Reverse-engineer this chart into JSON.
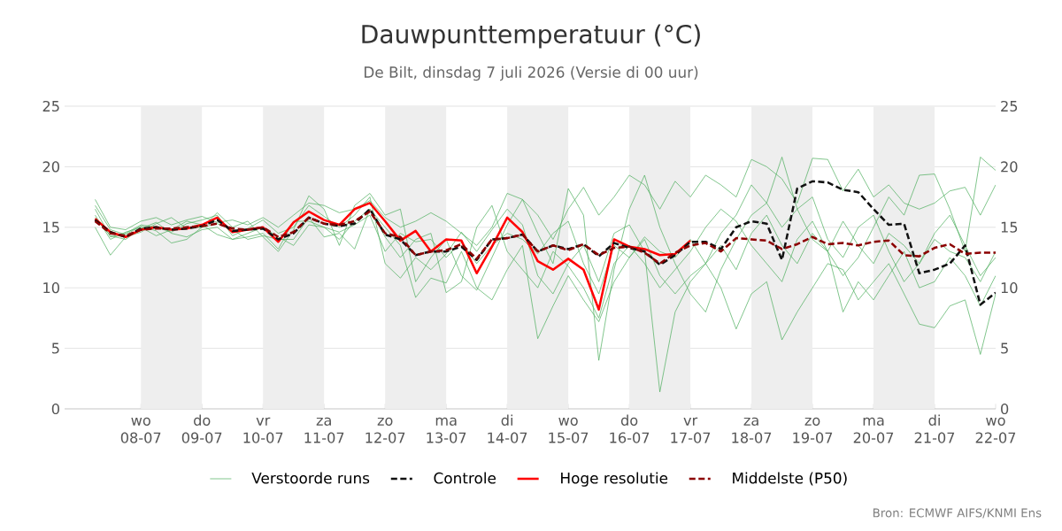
{
  "chart_data": {
    "type": "line",
    "title": "Dauwpunttemperatuur (°C)",
    "subtitle": "De Bilt, dinsdag  7 juli 2026 (Versie di 00 uur)",
    "annotations": [
      "Bron: ECMWF AIFS/KNMI Ens"
    ],
    "x": [
      "2026-07-07T06:00",
      "2026-07-07T12:00",
      "2026-07-07T18:00",
      "2026-07-08T00:00",
      "2026-07-08T06:00",
      "2026-07-08T12:00",
      "2026-07-08T18:00",
      "2026-07-09T00:00",
      "2026-07-09T06:00",
      "2026-07-09T12:00",
      "2026-07-09T18:00",
      "2026-07-10T00:00",
      "2026-07-10T06:00",
      "2026-07-10T12:00",
      "2026-07-10T18:00",
      "2026-07-11T00:00",
      "2026-07-11T06:00",
      "2026-07-11T12:00",
      "2026-07-11T18:00",
      "2026-07-12T00:00",
      "2026-07-12T06:00",
      "2026-07-12T12:00",
      "2026-07-12T18:00",
      "2026-07-13T00:00",
      "2026-07-13T06:00",
      "2026-07-13T12:00",
      "2026-07-13T18:00",
      "2026-07-14T00:00",
      "2026-07-14T06:00",
      "2026-07-14T12:00",
      "2026-07-14T18:00",
      "2026-07-15T00:00",
      "2026-07-15T06:00",
      "2026-07-15T12:00",
      "2026-07-15T18:00",
      "2026-07-16T00:00",
      "2026-07-16T06:00",
      "2026-07-16T12:00",
      "2026-07-16T18:00",
      "2026-07-17T00:00",
      "2026-07-17T06:00",
      "2026-07-17T12:00",
      "2026-07-17T18:00",
      "2026-07-18T00:00",
      "2026-07-18T06:00",
      "2026-07-18T12:00",
      "2026-07-18T18:00",
      "2026-07-19T00:00",
      "2026-07-19T06:00",
      "2026-07-19T12:00",
      "2026-07-19T18:00",
      "2026-07-20T00:00",
      "2026-07-20T06:00",
      "2026-07-20T12:00",
      "2026-07-20T18:00",
      "2026-07-21T00:00",
      "2026-07-21T06:00",
      "2026-07-21T12:00",
      "2026-07-21T18:00",
      "2026-07-22T00:00"
    ],
    "series": [
      {
        "name": "Verstoorde runs",
        "color": "#4cae5c",
        "line_style": "solid",
        "values": [
          16.5,
          14.2,
          14.5,
          15.2,
          15.0,
          14.6,
          15.3,
          15.6,
          16.0,
          14.3,
          14.9,
          15.6,
          14.5,
          15.0,
          16.8,
          15.9,
          15.0,
          16.0,
          17.5,
          12.0,
          10.8,
          12.5,
          11.5,
          12.8,
          14.6,
          13.0,
          14.8,
          16.5,
          15.2,
          11.0,
          9.5,
          12.0,
          13.5,
          10.5,
          14.5,
          15.2,
          13.0,
          1.4,
          8.0,
          10.5,
          12.0,
          14.5,
          16.0,
          18.5,
          17.0,
          15.0,
          16.5,
          17.5,
          14.0,
          12.5,
          15.0,
          16.0,
          13.0,
          10.5,
          12.0,
          14.5,
          16.0,
          13.5,
          11.0,
          12.5
        ]
      },
      {
        "color": "#4cae5c",
        "line_style": "solid",
        "values": [
          15.0,
          12.7,
          14.2,
          14.6,
          15.3,
          15.8,
          14.9,
          15.0,
          16.2,
          15.0,
          15.5,
          14.2,
          13.0,
          14.8,
          17.6,
          16.5,
          13.5,
          16.8,
          17.8,
          16.0,
          16.5,
          10.5,
          12.5,
          14.0,
          11.0,
          9.8,
          12.5,
          15.2,
          17.3,
          14.5,
          12.0,
          18.2,
          16.0,
          4.0,
          11.5,
          16.5,
          19.3,
          15.0,
          12.0,
          9.5,
          8.0,
          11.5,
          14.0,
          16.0,
          17.0,
          20.8,
          16.5,
          14.0,
          13.0,
          11.0,
          12.5,
          15.0,
          17.5,
          16.0,
          19.3,
          19.4,
          16.5,
          13.0,
          20.8,
          19.7
        ]
      },
      {
        "color": "#4cae5c",
        "line_style": "solid",
        "values": [
          16.0,
          14.0,
          14.6,
          15.0,
          14.3,
          14.8,
          15.5,
          15.2,
          14.4,
          14.0,
          14.2,
          14.5,
          13.2,
          15.5,
          15.5,
          15.0,
          14.0,
          15.5,
          16.5,
          15.0,
          13.5,
          9.2,
          10.8,
          10.4,
          13.0,
          10.0,
          9.0,
          11.5,
          13.5,
          5.8,
          8.5,
          11.0,
          9.0,
          7.2,
          10.5,
          12.5,
          14.0,
          11.0,
          9.5,
          11.0,
          12.0,
          10.0,
          6.6,
          9.5,
          10.5,
          5.7,
          8.0,
          10.0,
          12.0,
          11.5,
          9.0,
          10.5,
          12.0,
          9.5,
          7.0,
          6.7,
          8.5,
          9.0,
          4.5,
          9.5
        ]
      },
      {
        "color": "#4cae5c",
        "line_style": "solid",
        "values": [
          17.3,
          15.0,
          14.8,
          15.5,
          15.8,
          15.2,
          15.6,
          15.9,
          15.4,
          15.6,
          15.2,
          15.8,
          15.0,
          16.0,
          17.0,
          16.8,
          16.2,
          16.5,
          17.2,
          15.8,
          15.0,
          15.5,
          16.2,
          15.5,
          14.5,
          13.5,
          15.0,
          17.8,
          17.3,
          16.0,
          14.0,
          16.5,
          18.3,
          16.0,
          17.5,
          19.3,
          18.5,
          16.5,
          18.8,
          17.5,
          19.3,
          18.5,
          17.5,
          20.6,
          20.0,
          19.0,
          17.0,
          20.7,
          20.6,
          18.0,
          19.8,
          17.5,
          18.5,
          17.0,
          16.5,
          17.0,
          18.0,
          18.3,
          16.0,
          18.5
        ]
      },
      {
        "color": "#4cae5c",
        "line_style": "solid",
        "values": [
          15.8,
          14.3,
          14.0,
          14.9,
          15.4,
          14.5,
          14.2,
          14.8,
          15.0,
          14.0,
          14.5,
          15.0,
          14.2,
          13.5,
          15.2,
          15.0,
          14.6,
          15.2,
          16.0,
          13.0,
          14.5,
          13.8,
          14.0,
          12.5,
          13.8,
          12.0,
          13.5,
          14.5,
          14.0,
          12.8,
          14.5,
          15.5,
          12.0,
          9.5,
          13.5,
          12.5,
          14.2,
          13.0,
          12.5,
          14.0,
          12.0,
          13.5,
          11.5,
          14.5,
          16.0,
          13.5,
          12.0,
          14.5,
          13.0,
          15.5,
          13.5,
          12.0,
          14.5,
          13.5,
          12.0,
          14.0,
          13.0,
          12.5,
          10.5,
          13.0
        ]
      },
      {
        "color": "#4cae5c",
        "line_style": "solid",
        "values": [
          16.8,
          14.8,
          14.4,
          15.1,
          14.7,
          13.7,
          14.0,
          15.0,
          15.3,
          14.8,
          14.0,
          14.3,
          14.0,
          14.0,
          15.8,
          14.2,
          14.5,
          13.2,
          16.5,
          14.2,
          12.5,
          14.0,
          14.5,
          9.6,
          10.5,
          15.0,
          16.8,
          13.0,
          11.5,
          10.0,
          13.0,
          11.8,
          10.0,
          7.5,
          12.0,
          13.5,
          12.0,
          10.0,
          11.5,
          13.0,
          15.0,
          16.5,
          15.5,
          13.5,
          12.0,
          10.5,
          14.0,
          15.5,
          13.0,
          8.0,
          10.5,
          9.0,
          11.0,
          13.0,
          10.0,
          10.5,
          12.5,
          11.0,
          8.5,
          11.0
        ]
      },
      {
        "name": "Controle",
        "color": "#111111",
        "line_style": "dashed",
        "values": [
          15.6,
          14.6,
          14.2,
          14.9,
          15.0,
          14.8,
          14.9,
          15.1,
          15.6,
          14.7,
          14.8,
          14.9,
          14.0,
          14.5,
          15.8,
          15.3,
          15.1,
          15.3,
          16.5,
          14.4,
          14.0,
          12.7,
          13.0,
          13.0,
          13.4,
          12.3,
          14.0,
          14.1,
          14.4,
          13.0,
          13.5,
          13.2,
          13.6,
          12.6,
          13.7,
          13.3,
          13.0,
          11.9,
          12.7,
          13.8,
          13.8,
          13.2,
          15.0,
          15.5,
          15.3,
          12.3,
          18.2,
          18.8,
          18.7,
          18.1,
          17.9,
          16.5,
          15.2,
          15.3,
          11.2,
          11.5,
          12.0,
          13.5,
          8.6,
          9.6
        ]
      },
      {
        "name": "Hoge resolutie",
        "color": "#ff0000",
        "line_style": "solid",
        "values": [
          15.7,
          14.6,
          14.2,
          14.8,
          15.0,
          14.8,
          14.9,
          15.2,
          15.8,
          14.6,
          14.8,
          15.0,
          13.8,
          15.4,
          16.3,
          15.6,
          15.2,
          16.5,
          17.0,
          15.5,
          13.9,
          14.7,
          13.0,
          14.0,
          13.9,
          11.2,
          13.4,
          15.8,
          14.6,
          12.2,
          11.5,
          12.4,
          11.5,
          8.2,
          14.0,
          13.4,
          13.2,
          12.7,
          12.8,
          13.9,
          null,
          null,
          null,
          null,
          null,
          null,
          null,
          null,
          null,
          null,
          null,
          null,
          null,
          null,
          null,
          null,
          null,
          null,
          null,
          null
        ]
      },
      {
        "name": "Middelste (P50)",
        "color": "#8b0000",
        "line_style": "dashed",
        "values": [
          15.5,
          14.5,
          14.3,
          14.8,
          14.9,
          14.9,
          15.0,
          15.1,
          15.3,
          14.9,
          14.8,
          15.0,
          14.2,
          14.6,
          15.8,
          15.3,
          15.2,
          15.5,
          16.3,
          14.5,
          14.2,
          12.7,
          13.0,
          13.1,
          13.6,
          12.4,
          14.0,
          14.1,
          14.4,
          13.0,
          13.5,
          13.1,
          13.6,
          12.7,
          13.3,
          13.4,
          12.9,
          12.0,
          12.9,
          13.5,
          13.7,
          13.0,
          14.1,
          14.0,
          13.9,
          13.2,
          13.6,
          14.2,
          13.6,
          13.7,
          13.5,
          13.8,
          13.9,
          12.7,
          12.6,
          13.3,
          13.6,
          12.8,
          12.9,
          12.9
        ]
      }
    ],
    "xlim": [
      "2026-07-06T18:00",
      "2026-07-22T00:00"
    ],
    "xticks": [
      {
        "value": "2026-07-08",
        "label": "wo 08-07"
      },
      {
        "value": "2026-07-09",
        "label": "do 09-07"
      },
      {
        "value": "2026-07-10",
        "label": "vr 10-07"
      },
      {
        "value": "2026-07-11",
        "label": "za 11-07"
      },
      {
        "value": "2026-07-12",
        "label": "zo 12-07"
      },
      {
        "value": "2026-07-13",
        "label": "ma 13-07"
      },
      {
        "value": "2026-07-14",
        "label": "di 14-07"
      },
      {
        "value": "2026-07-15",
        "label": "wo 15-07"
      },
      {
        "value": "2026-07-16",
        "label": "do 16-07"
      },
      {
        "value": "2026-07-17",
        "label": "vr 17-07"
      },
      {
        "value": "2026-07-18",
        "label": "za 18-07"
      },
      {
        "value": "2026-07-19",
        "label": "zo 19-07"
      },
      {
        "value": "2026-07-20",
        "label": "ma 20-07"
      },
      {
        "value": "2026-07-21",
        "label": "di 21-07"
      },
      {
        "value": "2026-07-22",
        "label": "wo 22-07"
      }
    ],
    "ylim": [
      0,
      25
    ],
    "yticks": [
      0,
      5,
      10,
      15,
      20,
      25
    ],
    "y2lim": [
      0,
      25
    ],
    "y2ticks": [
      0,
      5,
      10,
      15,
      20,
      25
    ],
    "bands": [
      {
        "axis": "x",
        "from": "2026-07-08",
        "to": "2026-07-09",
        "color": "#eeeeee"
      },
      {
        "axis": "x",
        "from": "2026-07-10",
        "to": "2026-07-11",
        "color": "#eeeeee"
      },
      {
        "axis": "x",
        "from": "2026-07-12",
        "to": "2026-07-13",
        "color": "#eeeeee"
      },
      {
        "axis": "x",
        "from": "2026-07-14",
        "to": "2026-07-15",
        "color": "#eeeeee"
      },
      {
        "axis": "x",
        "from": "2026-07-16",
        "to": "2026-07-17",
        "color": "#eeeeee"
      },
      {
        "axis": "x",
        "from": "2026-07-18",
        "to": "2026-07-19",
        "color": "#eeeeee"
      },
      {
        "axis": "x",
        "from": "2026-07-20",
        "to": "2026-07-21",
        "color": "#eeeeee"
      }
    ],
    "grid": "y",
    "legend": "bottom",
    "marker": "none"
  }
}
